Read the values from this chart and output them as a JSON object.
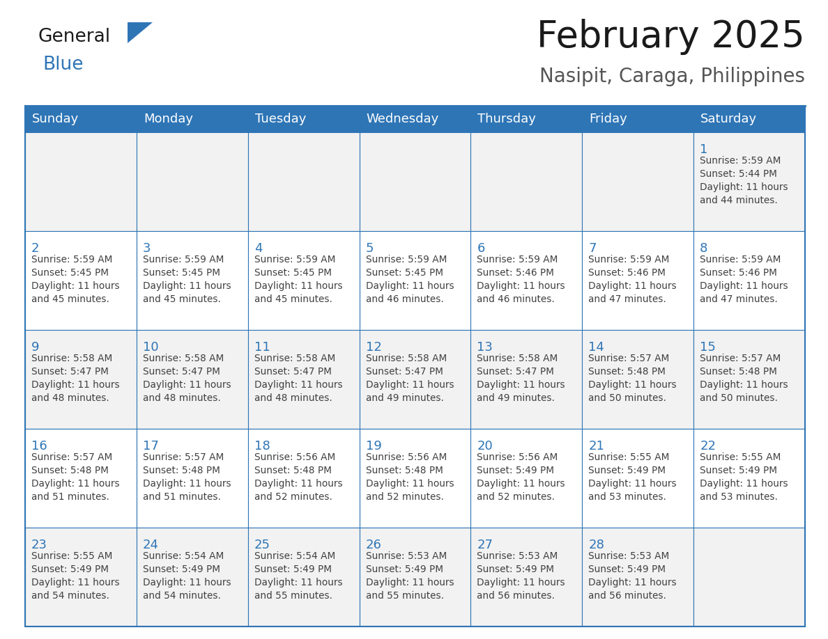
{
  "title": "February 2025",
  "subtitle": "Nasipit, Caraga, Philippines",
  "header_color": "#2E75B6",
  "header_text_color": "#FFFFFF",
  "cell_bg_even": "#FFFFFF",
  "cell_bg_odd": "#F2F2F2",
  "border_color": "#2E75B6",
  "day_number_color": "#2E75B6",
  "info_text_color": "#404040",
  "title_color": "#1a1a1a",
  "logo_general_color": "#1a1a1a",
  "logo_blue_color": "#2E75B6",
  "logo_triangle_color": "#2E75B6",
  "days_of_week": [
    "Sunday",
    "Monday",
    "Tuesday",
    "Wednesday",
    "Thursday",
    "Friday",
    "Saturday"
  ],
  "title_fontsize": 38,
  "subtitle_fontsize": 20,
  "header_fontsize": 13,
  "day_num_fontsize": 13,
  "info_fontsize": 9.8,
  "calendar_data": [
    [
      {
        "day": 0,
        "info": ""
      },
      {
        "day": 0,
        "info": ""
      },
      {
        "day": 0,
        "info": ""
      },
      {
        "day": 0,
        "info": ""
      },
      {
        "day": 0,
        "info": ""
      },
      {
        "day": 0,
        "info": ""
      },
      {
        "day": 1,
        "info": "Sunrise: 5:59 AM\nSunset: 5:44 PM\nDaylight: 11 hours\nand 44 minutes."
      }
    ],
    [
      {
        "day": 2,
        "info": "Sunrise: 5:59 AM\nSunset: 5:45 PM\nDaylight: 11 hours\nand 45 minutes."
      },
      {
        "day": 3,
        "info": "Sunrise: 5:59 AM\nSunset: 5:45 PM\nDaylight: 11 hours\nand 45 minutes."
      },
      {
        "day": 4,
        "info": "Sunrise: 5:59 AM\nSunset: 5:45 PM\nDaylight: 11 hours\nand 45 minutes."
      },
      {
        "day": 5,
        "info": "Sunrise: 5:59 AM\nSunset: 5:45 PM\nDaylight: 11 hours\nand 46 minutes."
      },
      {
        "day": 6,
        "info": "Sunrise: 5:59 AM\nSunset: 5:46 PM\nDaylight: 11 hours\nand 46 minutes."
      },
      {
        "day": 7,
        "info": "Sunrise: 5:59 AM\nSunset: 5:46 PM\nDaylight: 11 hours\nand 47 minutes."
      },
      {
        "day": 8,
        "info": "Sunrise: 5:59 AM\nSunset: 5:46 PM\nDaylight: 11 hours\nand 47 minutes."
      }
    ],
    [
      {
        "day": 9,
        "info": "Sunrise: 5:58 AM\nSunset: 5:47 PM\nDaylight: 11 hours\nand 48 minutes."
      },
      {
        "day": 10,
        "info": "Sunrise: 5:58 AM\nSunset: 5:47 PM\nDaylight: 11 hours\nand 48 minutes."
      },
      {
        "day": 11,
        "info": "Sunrise: 5:58 AM\nSunset: 5:47 PM\nDaylight: 11 hours\nand 48 minutes."
      },
      {
        "day": 12,
        "info": "Sunrise: 5:58 AM\nSunset: 5:47 PM\nDaylight: 11 hours\nand 49 minutes."
      },
      {
        "day": 13,
        "info": "Sunrise: 5:58 AM\nSunset: 5:47 PM\nDaylight: 11 hours\nand 49 minutes."
      },
      {
        "day": 14,
        "info": "Sunrise: 5:57 AM\nSunset: 5:48 PM\nDaylight: 11 hours\nand 50 minutes."
      },
      {
        "day": 15,
        "info": "Sunrise: 5:57 AM\nSunset: 5:48 PM\nDaylight: 11 hours\nand 50 minutes."
      }
    ],
    [
      {
        "day": 16,
        "info": "Sunrise: 5:57 AM\nSunset: 5:48 PM\nDaylight: 11 hours\nand 51 minutes."
      },
      {
        "day": 17,
        "info": "Sunrise: 5:57 AM\nSunset: 5:48 PM\nDaylight: 11 hours\nand 51 minutes."
      },
      {
        "day": 18,
        "info": "Sunrise: 5:56 AM\nSunset: 5:48 PM\nDaylight: 11 hours\nand 52 minutes."
      },
      {
        "day": 19,
        "info": "Sunrise: 5:56 AM\nSunset: 5:48 PM\nDaylight: 11 hours\nand 52 minutes."
      },
      {
        "day": 20,
        "info": "Sunrise: 5:56 AM\nSunset: 5:49 PM\nDaylight: 11 hours\nand 52 minutes."
      },
      {
        "day": 21,
        "info": "Sunrise: 5:55 AM\nSunset: 5:49 PM\nDaylight: 11 hours\nand 53 minutes."
      },
      {
        "day": 22,
        "info": "Sunrise: 5:55 AM\nSunset: 5:49 PM\nDaylight: 11 hours\nand 53 minutes."
      }
    ],
    [
      {
        "day": 23,
        "info": "Sunrise: 5:55 AM\nSunset: 5:49 PM\nDaylight: 11 hours\nand 54 minutes."
      },
      {
        "day": 24,
        "info": "Sunrise: 5:54 AM\nSunset: 5:49 PM\nDaylight: 11 hours\nand 54 minutes."
      },
      {
        "day": 25,
        "info": "Sunrise: 5:54 AM\nSunset: 5:49 PM\nDaylight: 11 hours\nand 55 minutes."
      },
      {
        "day": 26,
        "info": "Sunrise: 5:53 AM\nSunset: 5:49 PM\nDaylight: 11 hours\nand 55 minutes."
      },
      {
        "day": 27,
        "info": "Sunrise: 5:53 AM\nSunset: 5:49 PM\nDaylight: 11 hours\nand 56 minutes."
      },
      {
        "day": 28,
        "info": "Sunrise: 5:53 AM\nSunset: 5:49 PM\nDaylight: 11 hours\nand 56 minutes."
      },
      {
        "day": 0,
        "info": ""
      }
    ]
  ]
}
